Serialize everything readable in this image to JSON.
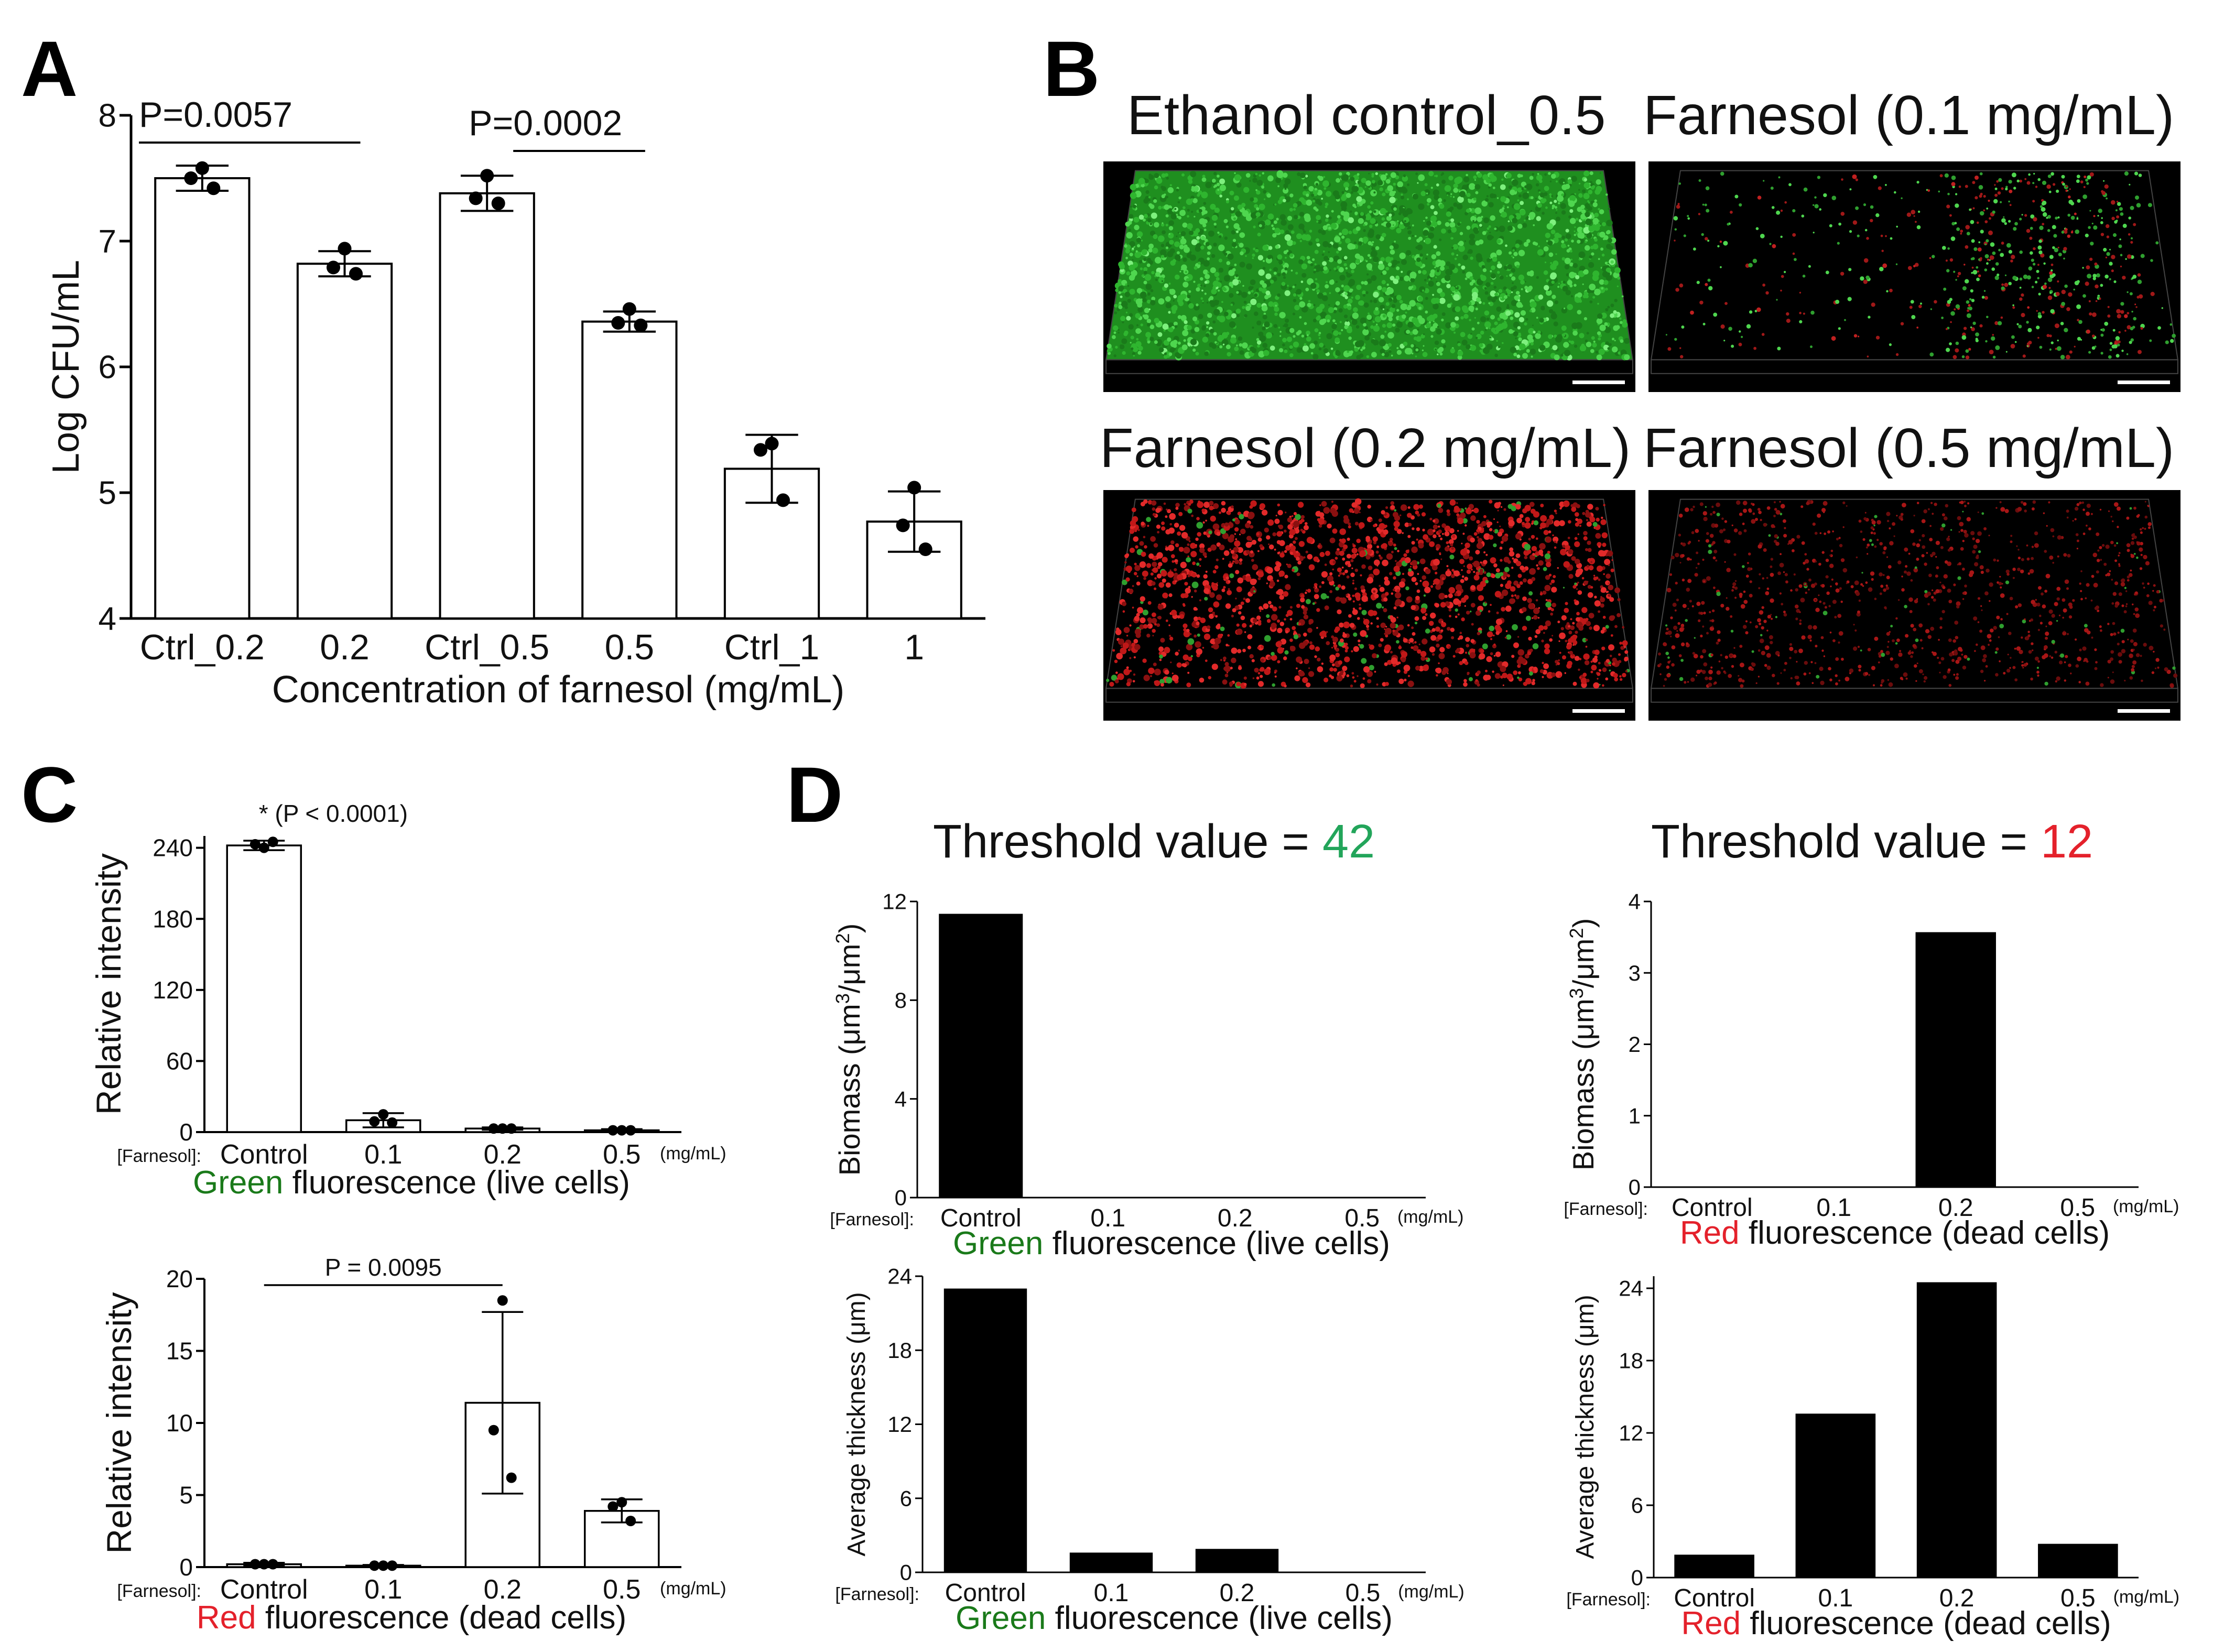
{
  "panels": {
    "a": "A",
    "b": "B",
    "c": "C",
    "d": "D"
  },
  "chart_data": [
    {
      "id": "A",
      "type": "bar",
      "categories": [
        "Ctrl_0.2",
        "0.2",
        "Ctrl_0.5",
        "0.5",
        "Ctrl_1",
        "1"
      ],
      "values": [
        7.5,
        6.82,
        7.38,
        6.36,
        5.19,
        4.77
      ],
      "errors": [
        0.1,
        0.1,
        0.14,
        0.08,
        0.27,
        0.24
      ],
      "points": [
        [
          7.58,
          7.5,
          7.42
        ],
        [
          6.94,
          6.79,
          6.74
        ],
        [
          7.52,
          7.34,
          7.3
        ],
        [
          6.46,
          6.35,
          6.33
        ],
        [
          5.39,
          5.34,
          4.94
        ],
        [
          5.04,
          4.74,
          4.55
        ]
      ],
      "xlabel": "Concentration of farnesol (mg/mL)",
      "ylabel": "Log CFU/mL",
      "ylim": [
        4,
        8
      ],
      "yticks": [
        "4",
        "5",
        "6",
        "7",
        "8"
      ],
      "annotations": [
        {
          "text": "P=0.0057",
          "from": 0,
          "to": 1
        },
        {
          "text": "P=0.0002",
          "from": 2,
          "to": 3
        }
      ]
    },
    {
      "id": "C-green",
      "type": "bar",
      "axis_prefix": "[Farnesol]:",
      "unit_suffix": "(mg/mL)",
      "categories": [
        "Control",
        "0.1",
        "0.2",
        "0.5"
      ],
      "values": [
        242,
        10,
        3,
        1.5
      ],
      "errors": [
        4,
        6,
        1,
        1
      ],
      "points": [
        [
          240,
          243,
          245
        ],
        [
          15,
          9,
          8
        ],
        [
          3,
          3,
          3
        ],
        [
          1.5,
          1.5,
          1.5
        ]
      ],
      "ylabel": "Relative intensity",
      "ylim": [
        0,
        250
      ],
      "yticks": [
        "0",
        "60",
        "120",
        "180",
        "240"
      ],
      "xlabel_colored": "Green",
      "xlabel_rest": " fluorescence (live cells)",
      "annotation": "* (P < 0.0001)"
    },
    {
      "id": "C-red",
      "type": "bar",
      "axis_prefix": "[Farnesol]:",
      "unit_suffix": "(mg/mL)",
      "categories": [
        "Control",
        "0.1",
        "0.2",
        "0.5"
      ],
      "values": [
        0.2,
        0.1,
        11.4,
        3.9
      ],
      "errors": [
        0.1,
        0.05,
        6.3,
        0.8
      ],
      "points": [
        [
          0.2,
          0.2,
          0.2
        ],
        [
          0.1,
          0.1,
          0.1
        ],
        [
          18.5,
          9.5,
          6.2
        ],
        [
          4.5,
          4.2,
          3.2
        ]
      ],
      "ylabel": "Relative intensity",
      "ylim": [
        0,
        20
      ],
      "yticks": [
        "0",
        "5",
        "10",
        "15",
        "20"
      ],
      "xlabel_colored": "Red",
      "xlabel_rest": " fluorescence (dead cells)",
      "annotation": {
        "text": "P = 0.0095",
        "from": 0,
        "to": 2
      }
    },
    {
      "id": "D-green-biomass",
      "type": "bar",
      "axis_prefix": "[Farnesol]:",
      "unit_suffix": "(mg/mL)",
      "categories": [
        "Control",
        "0.1",
        "0.2",
        "0.5"
      ],
      "values": [
        11.5,
        0,
        0,
        0
      ],
      "ylabel_main": "Biomass (μm",
      "ylabel_sup1": "3",
      "ylabel_mid": "/μm",
      "ylabel_sup2": "2",
      "ylabel_end": ")",
      "ylim": [
        0,
        12
      ],
      "yticks": [
        "0",
        "4",
        "8",
        "12"
      ],
      "xlabel_colored": "Green",
      "xlabel_rest": " fluorescence (live cells)"
    },
    {
      "id": "D-green-thickness",
      "type": "bar",
      "axis_prefix": "[Farnesol]:",
      "unit_suffix": "(mg/mL)",
      "categories": [
        "Control",
        "0.1",
        "0.2",
        "0.5"
      ],
      "values": [
        23,
        1.6,
        1.9,
        0
      ],
      "ylabel": "Average thickness (μm)",
      "ylim": [
        0,
        24
      ],
      "yticks": [
        "0",
        "6",
        "12",
        "18",
        "24"
      ],
      "xlabel_colored": "Green",
      "xlabel_rest": " fluorescence (live cells)"
    },
    {
      "id": "D-red-biomass",
      "type": "bar",
      "axis_prefix": "[Farnesol]:",
      "unit_suffix": "(mg/mL)",
      "categories": [
        "Control",
        "0.1",
        "0.2",
        "0.5"
      ],
      "values": [
        0,
        0,
        3.57,
        0
      ],
      "ylabel_main": "Biomass (μm",
      "ylabel_sup1": "3",
      "ylabel_mid": "/μm",
      "ylabel_sup2": "2",
      "ylabel_end": ")",
      "ylim": [
        0,
        4
      ],
      "yticks": [
        "0",
        "1",
        "2",
        "3",
        "4"
      ],
      "xlabel_colored": "Red",
      "xlabel_rest": " fluorescence (dead cells)"
    },
    {
      "id": "D-red-thickness",
      "type": "bar",
      "axis_prefix": "[Farnesol]:",
      "unit_suffix": "(mg/mL)",
      "categories": [
        "Control",
        "0.1",
        "0.2",
        "0.5"
      ],
      "values": [
        1.9,
        13.6,
        24.5,
        2.8
      ],
      "ylabel": "Average thickness (μm)",
      "ylim": [
        0,
        25
      ],
      "yticks": [
        "0",
        "6",
        "12",
        "18",
        "24"
      ],
      "xlabel_colored": "Red",
      "xlabel_rest": " fluorescence (dead cells)"
    }
  ],
  "threshold": {
    "green_label": "Threshold value = ",
    "green_value": "42",
    "red_label": "Threshold value = ",
    "red_value": "12",
    "green_color": "#22a55a",
    "red_color": "#e4212b"
  },
  "micrographs": [
    {
      "title": "Ethanol  control_0.5",
      "stain": "green-dense"
    },
    {
      "title": "Farnesol  (0.1 mg/mL)",
      "stain": "sparse-green-red"
    },
    {
      "title": "Farnesol  (0.2 mg/mL)",
      "stain": "red-dense"
    },
    {
      "title": "Farnesol  (0.5 mg/mL)",
      "stain": "red-sparse"
    }
  ],
  "colors": {
    "live": "#1a7a1a",
    "dead": "#e4212b",
    "bar_outline": "#000000",
    "bar_fill_solid": "#000000"
  }
}
